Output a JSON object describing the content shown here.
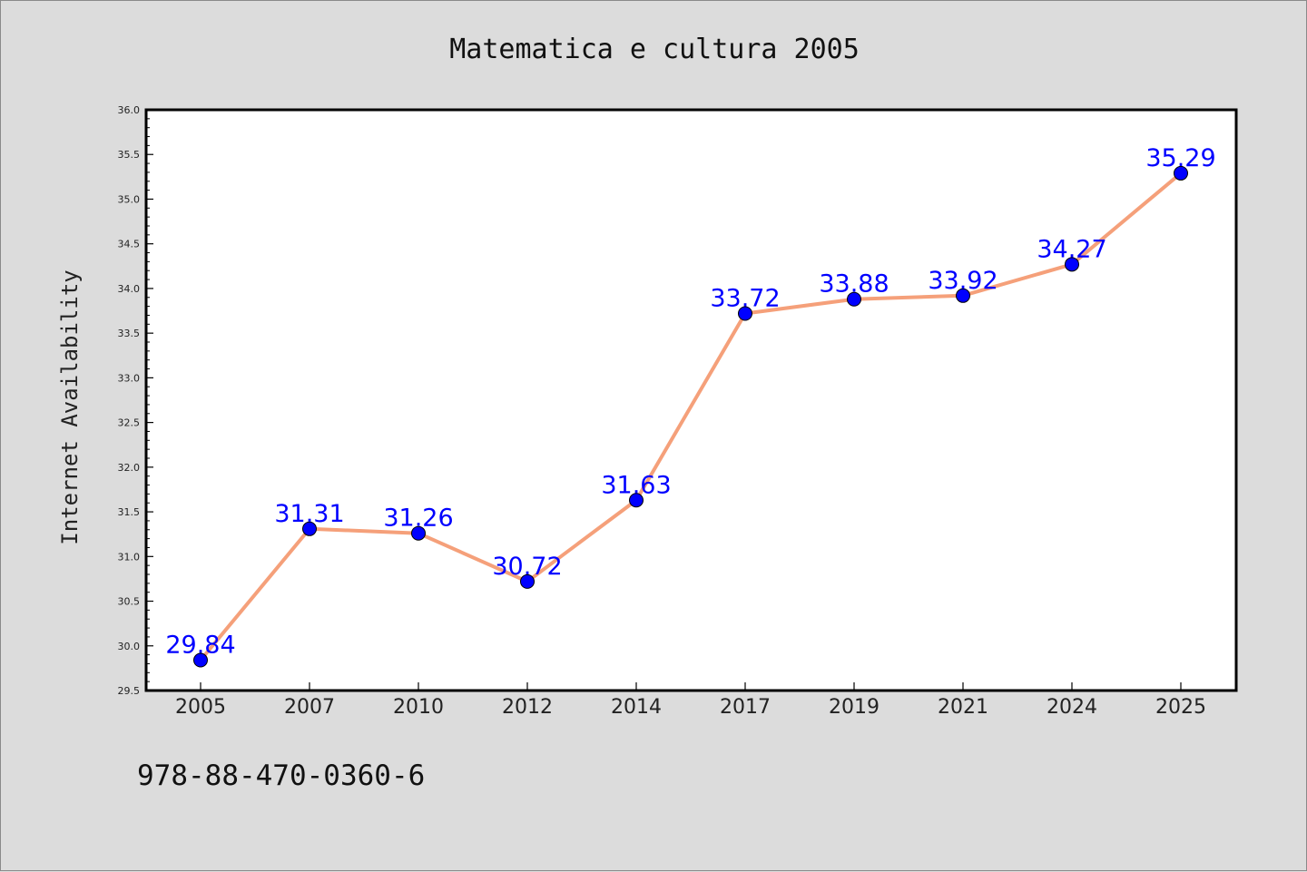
{
  "chart_data": {
    "type": "line",
    "title": "Matematica e cultura 2005",
    "xlabel": "",
    "ylabel": "Internet Availability",
    "categories": [
      "2005",
      "2007",
      "2010",
      "2012",
      "2014",
      "2017",
      "2019",
      "2021",
      "2024",
      "2025"
    ],
    "series": [
      {
        "values": [
          29.84,
          31.31,
          31.26,
          30.72,
          31.63,
          33.72,
          33.88,
          33.92,
          34.27,
          35.29
        ],
        "data_labels": [
          "29.84",
          "31.31",
          "31.26",
          "30.72",
          "31.63",
          "33.72",
          "33.88",
          "33.92",
          "34.27",
          "35.29"
        ],
        "line_color": "#f5a07a",
        "marker_color": "#0000ff"
      }
    ],
    "ylim": [
      29.5,
      36.0
    ],
    "y_ticks": [
      "29.5",
      "30.0",
      "30.5",
      "31.0",
      "31.5",
      "32.0",
      "32.5",
      "33.0",
      "33.5",
      "34.0",
      "34.5",
      "35.0",
      "35.5",
      "36.0"
    ],
    "grid": false,
    "legend": "none",
    "label_color": "#0000ff"
  },
  "footer": {
    "isbn": "978-88-470-0360-6"
  }
}
